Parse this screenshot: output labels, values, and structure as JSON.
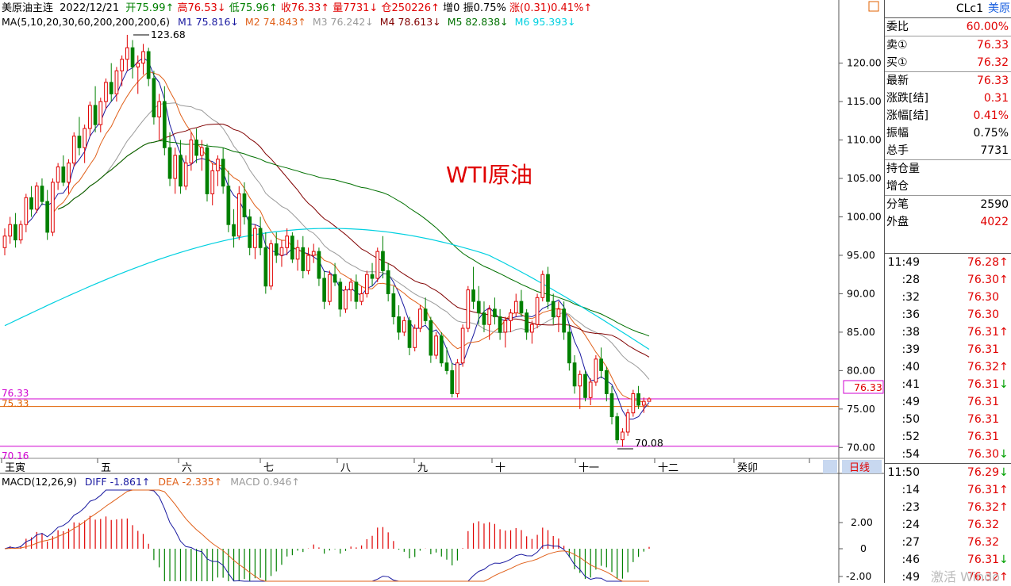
{
  "header": {
    "name": "美原油主连",
    "date": "2022/12/21",
    "open_label": "开",
    "open": "75.99↑",
    "high_label": "高",
    "high": "76.53↓",
    "low_label": "低",
    "low": "75.96↑",
    "close_label": "收",
    "close": "76.33↑",
    "vol_label": "量",
    "vol": "7731↓",
    "oi_label": "仓",
    "oi": "250226↑",
    "inc_label": "增",
    "inc": "0",
    "amp_label": "振",
    "amp": "0.75%",
    "chg_label": "涨",
    "chg": "(0.31)0.41%↑"
  },
  "ma_line": {
    "title": "MA(5,10,20,30,60,200,200,200,6)",
    "items": [
      {
        "label": "M1",
        "value": "75.816↓",
        "color": "#1a1aa0"
      },
      {
        "label": "M2",
        "value": "74.843↑",
        "color": "#e0601a"
      },
      {
        "label": "M3",
        "value": "76.242↓",
        "color": "#9a9a9a"
      },
      {
        "label": "M4",
        "value": "78.613↓",
        "color": "#800000"
      },
      {
        "label": "M5",
        "value": "82.838↓",
        "color": "#007000"
      },
      {
        "label": "M6",
        "value": "95.393↓",
        "color": "#00d0e0"
      }
    ]
  },
  "annotation": "WTI原油",
  "high_marker": "123.68",
  "low_marker": "70.08",
  "left_labels": {
    "l1": "76.33",
    "l2": "75.33",
    "l3": "70.16"
  },
  "current_price_box": "76.33",
  "month_labels": [
    "王寅",
    "五",
    "六",
    "七",
    "八",
    "九",
    "十",
    "十一",
    "十二",
    "癸卯"
  ],
  "period_button": "日线",
  "macd": {
    "title": "MACD(12,26,9)",
    "diff_label": "DIFF",
    "diff": "-1.861↑",
    "dea_label": "DEA",
    "dea": "-2.335↑",
    "macd_label": "MACD",
    "macd_val": "0.946↑",
    "axis": [
      "2.00",
      "0",
      "-2.00"
    ]
  },
  "sidebar": {
    "symbol": "CLc1",
    "symbol_name": "美原",
    "quote": [
      {
        "label": "委比",
        "value": "60.00%",
        "color": "#e00000"
      },
      {
        "label": "卖①",
        "value": "76.33",
        "color": "#e00000"
      },
      {
        "label": "买①",
        "value": "76.32",
        "color": "#e00000"
      },
      {
        "label": "最新",
        "value": "76.33",
        "color": "#e00000"
      },
      {
        "label": "涨跌[结]",
        "value": "0.31",
        "color": "#e00000"
      },
      {
        "label": "涨幅[结]",
        "value": "0.41%",
        "color": "#e00000"
      },
      {
        "label": "振幅",
        "value": "0.75%",
        "color": "#000000"
      },
      {
        "label": "总手",
        "value": "7731",
        "color": "#000000"
      },
      {
        "label": "持仓量",
        "value": "",
        "color": "#000000"
      },
      {
        "label": "增仓",
        "value": "",
        "color": "#000000"
      },
      {
        "label": "分笔",
        "value": "2590",
        "color": "#000000"
      },
      {
        "label": "外盘",
        "value": "4022",
        "color": "#e00000"
      }
    ],
    "ticks": [
      {
        "t": "11:49",
        "p": "76.28",
        "a": "↑",
        "ac": "#e00000"
      },
      {
        "t": ":28",
        "p": "76.30",
        "a": "↑",
        "ac": "#e00000"
      },
      {
        "t": ":32",
        "p": "76.30",
        "a": "",
        "ac": "#e00000"
      },
      {
        "t": ":36",
        "p": "76.30",
        "a": "",
        "ac": "#e00000"
      },
      {
        "t": ":38",
        "p": "76.31",
        "a": "↑",
        "ac": "#e00000"
      },
      {
        "t": ":39",
        "p": "76.31",
        "a": "",
        "ac": "#e00000"
      },
      {
        "t": ":40",
        "p": "76.32",
        "a": "↑",
        "ac": "#e00000"
      },
      {
        "t": ":41",
        "p": "76.31",
        "a": "↓",
        "ac": "#00a000"
      },
      {
        "t": ":49",
        "p": "76.31",
        "a": "",
        "ac": "#e00000"
      },
      {
        "t": ":50",
        "p": "76.31",
        "a": "",
        "ac": "#e00000"
      },
      {
        "t": ":52",
        "p": "76.31",
        "a": "",
        "ac": "#e00000"
      },
      {
        "t": ":54",
        "p": "76.30",
        "a": "↓",
        "ac": "#00a000"
      },
      {
        "t": "11:50",
        "p": "76.29",
        "a": "↓",
        "ac": "#00a000"
      },
      {
        "t": ":14",
        "p": "76.31",
        "a": "↑",
        "ac": "#e00000"
      },
      {
        "t": ":23",
        "p": "76.32",
        "a": "↑",
        "ac": "#e00000"
      },
      {
        "t": ":24",
        "p": "76.32",
        "a": "",
        "ac": "#e00000"
      },
      {
        "t": ":27",
        "p": "76.32",
        "a": "",
        "ac": "#e00000"
      },
      {
        "t": ":46",
        "p": "76.31",
        "a": "↓",
        "ac": "#00a000"
      },
      {
        "t": ":49",
        "p": "76.32",
        "a": "↑",
        "ac": "#e00000"
      }
    ]
  },
  "watermark": "激活 Windo",
  "colors": {
    "up": "#e00000",
    "down": "#008000",
    "ma1": "#1a1aa0",
    "ma2": "#e0601a",
    "ma3": "#9a9a9a",
    "ma4": "#800000",
    "ma5": "#007000",
    "ma6": "#00d0e0",
    "hline": "#d000d0",
    "hline2": "#e06000"
  },
  "chart_data": {
    "type": "candlestick",
    "title": "美原油主连",
    "y_ticks": [
      120,
      115,
      110,
      105,
      100,
      95,
      90,
      85,
      80,
      75,
      70
    ],
    "ylim": [
      69,
      124.5
    ],
    "grid": false,
    "candles": [
      [
        96,
        98.5,
        95,
        97.5
      ],
      [
        97.5,
        100,
        96.5,
        99
      ],
      [
        99,
        100.5,
        96,
        97
      ],
      [
        97,
        99.5,
        96.5,
        99
      ],
      [
        99,
        103,
        98,
        102.5
      ],
      [
        102.5,
        104,
        100,
        101
      ],
      [
        101,
        104.5,
        100.5,
        104
      ],
      [
        104,
        105,
        101.5,
        102
      ],
      [
        102,
        103.5,
        97,
        98
      ],
      [
        98,
        105,
        97.5,
        104.5
      ],
      [
        104.5,
        107,
        103.5,
        106.5
      ],
      [
        106.5,
        108,
        104,
        104.5
      ],
      [
        104.5,
        107.5,
        103,
        107
      ],
      [
        107,
        111,
        106.5,
        110.5
      ],
      [
        110.5,
        113,
        108,
        109
      ],
      [
        109,
        112,
        107,
        111.5
      ],
      [
        111.5,
        115,
        110.5,
        114.5
      ],
      [
        114.5,
        117,
        111,
        112
      ],
      [
        112,
        115.5,
        111,
        115
      ],
      [
        115,
        118,
        114,
        117.5
      ],
      [
        117.5,
        120,
        115,
        116
      ],
      [
        116,
        119.5,
        115,
        119
      ],
      [
        119,
        121,
        117,
        120.5
      ],
      [
        120.5,
        123.68,
        119,
        122
      ],
      [
        122,
        123,
        118,
        119.5
      ],
      [
        119.5,
        121,
        116,
        120
      ],
      [
        120,
        122.5,
        118.5,
        121.5
      ],
      [
        121.5,
        122,
        117,
        118
      ],
      [
        118,
        119,
        112,
        113
      ],
      [
        113,
        116,
        110,
        115
      ],
      [
        115,
        117,
        108,
        109
      ],
      [
        109,
        111,
        104,
        105
      ],
      [
        105,
        109,
        103,
        108
      ],
      [
        108,
        110,
        103,
        104
      ],
      [
        104,
        108,
        103.5,
        107
      ],
      [
        107,
        111,
        106,
        110
      ],
      [
        110,
        111.5,
        107,
        108
      ],
      [
        108,
        110,
        106,
        109
      ],
      [
        109,
        109.5,
        102,
        103
      ],
      [
        103,
        107,
        101.5,
        106
      ],
      [
        106,
        108,
        104,
        107.5
      ],
      [
        107.5,
        109,
        103,
        104
      ],
      [
        104,
        106,
        98,
        99
      ],
      [
        99,
        101,
        96,
        97.5
      ],
      [
        97.5,
        104,
        97,
        103
      ],
      [
        103,
        104.5,
        99,
        100
      ],
      [
        100,
        101,
        95,
        96
      ],
      [
        96,
        99,
        94.5,
        98.5
      ],
      [
        98.5,
        100,
        95,
        96
      ],
      [
        96,
        98,
        90,
        91
      ],
      [
        91,
        97,
        90.5,
        96.5
      ],
      [
        96.5,
        98,
        94,
        95
      ],
      [
        95,
        97,
        93.5,
        96
      ],
      [
        96,
        98.5,
        95,
        97.5
      ],
      [
        97.5,
        98,
        94,
        94.5
      ],
      [
        94.5,
        97,
        93,
        96
      ],
      [
        96,
        97.5,
        92,
        93
      ],
      [
        93,
        96,
        92.5,
        95
      ],
      [
        95,
        96.5,
        94,
        95.5
      ],
      [
        95.5,
        96,
        91,
        92
      ],
      [
        92,
        93,
        88,
        89
      ],
      [
        89,
        93,
        88.5,
        92.5
      ],
      [
        92.5,
        94,
        91,
        91.5
      ],
      [
        91.5,
        92,
        87,
        88
      ],
      [
        88,
        91,
        87.5,
        90.5
      ],
      [
        90.5,
        92,
        89,
        91.5
      ],
      [
        91.5,
        92.5,
        88,
        89
      ],
      [
        89,
        91,
        88.5,
        90
      ],
      [
        90,
        93,
        89.5,
        92.5
      ],
      [
        92.5,
        94,
        91,
        92
      ],
      [
        92,
        96,
        91.5,
        95.5
      ],
      [
        95.5,
        97.5,
        92,
        93
      ],
      [
        93,
        94,
        89,
        90
      ],
      [
        90,
        91,
        86,
        87
      ],
      [
        87,
        88.5,
        84,
        85
      ],
      [
        85,
        87,
        84.5,
        86.5
      ],
      [
        86.5,
        87,
        82,
        83
      ],
      [
        83,
        86,
        82.5,
        85.5
      ],
      [
        85.5,
        88.5,
        85,
        88
      ],
      [
        88,
        89.5,
        86,
        86.5
      ],
      [
        86.5,
        87,
        81,
        82
      ],
      [
        82,
        85,
        81.5,
        84.5
      ],
      [
        84.5,
        85,
        80.5,
        81
      ],
      [
        81,
        83,
        79.5,
        80
      ],
      [
        80,
        81,
        76.5,
        77
      ],
      [
        77,
        81.5,
        76.5,
        81
      ],
      [
        81,
        86,
        80.5,
        85.5
      ],
      [
        85.5,
        91,
        85,
        90.5
      ],
      [
        90.5,
        93.5,
        88,
        89
      ],
      [
        89,
        91,
        86,
        87.5
      ],
      [
        87.5,
        89,
        85,
        86
      ],
      [
        86,
        88.5,
        84,
        88
      ],
      [
        88,
        89.5,
        86,
        87
      ],
      [
        87,
        88,
        84,
        85
      ],
      [
        85,
        87,
        83,
        86.5
      ],
      [
        86.5,
        88,
        85,
        87.5
      ],
      [
        87.5,
        90,
        87,
        89
      ],
      [
        89,
        90.5,
        87,
        87.5
      ],
      [
        87.5,
        88,
        84,
        85
      ],
      [
        85,
        86.5,
        83.5,
        86
      ],
      [
        86,
        90,
        85.5,
        89.5
      ],
      [
        89.5,
        93,
        89,
        92.5
      ],
      [
        92.5,
        93.5,
        88,
        89
      ],
      [
        89,
        90,
        86,
        87
      ],
      [
        87,
        89,
        85,
        88
      ],
      [
        88,
        89,
        84,
        85
      ],
      [
        85,
        86,
        80,
        81
      ],
      [
        81,
        82,
        77,
        78
      ],
      [
        78,
        80,
        75,
        79.5
      ],
      [
        79.5,
        80,
        76,
        76.5
      ],
      [
        76.5,
        79,
        75.5,
        78.5
      ],
      [
        78.5,
        82,
        78,
        81.5
      ],
      [
        81.5,
        83,
        79,
        80
      ],
      [
        80,
        80.5,
        76,
        77
      ],
      [
        77,
        78,
        73,
        74
      ],
      [
        74,
        74.5,
        70.5,
        71
      ],
      [
        71,
        72.5,
        70.08,
        72
      ],
      [
        72,
        75,
        71.5,
        74.5
      ],
      [
        74.5,
        77.5,
        74,
        77
      ],
      [
        77,
        78,
        75,
        75.5
      ],
      [
        75.5,
        76.5,
        74.5,
        76
      ],
      [
        76,
        76.53,
        75.96,
        76.33
      ]
    ],
    "macd_diff_range": [
      -2.6,
      3.9
    ],
    "h_lines": [
      76.33,
      75.33,
      70.16
    ]
  }
}
